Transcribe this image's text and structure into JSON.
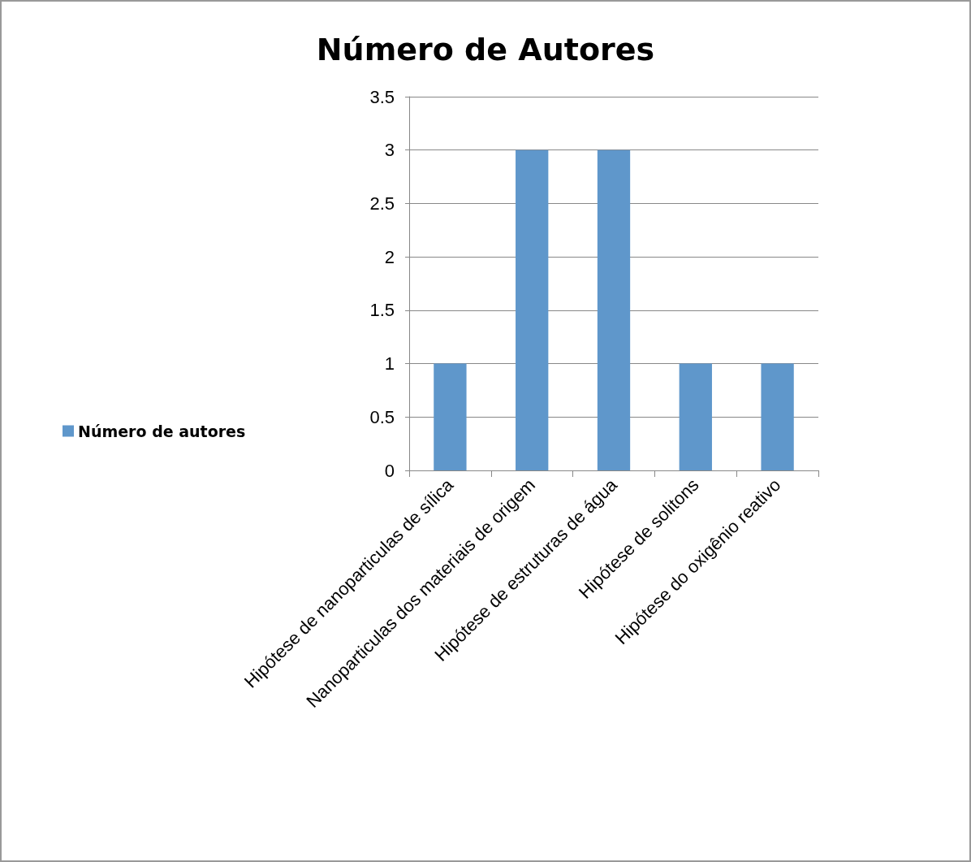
{
  "chart_data": {
    "type": "bar",
    "title": "Número de Autores",
    "categories": [
      "Hipótese de nanoparticulas de sílica",
      "Nanoparticulas dos materiais de origem",
      "Hipótese de estruturas de água",
      "Hipótese de solitons",
      "Hipótese do oxigênio reativo"
    ],
    "series": [
      {
        "name": "Número de autores",
        "color": "#5f97cb",
        "values": [
          1,
          3,
          3,
          1,
          1
        ]
      }
    ],
    "ylim": [
      0,
      3.5
    ],
    "yticks": [
      0,
      0.5,
      1,
      1.5,
      2,
      2.5,
      3,
      3.5
    ],
    "grid": "y",
    "legend": "left"
  }
}
